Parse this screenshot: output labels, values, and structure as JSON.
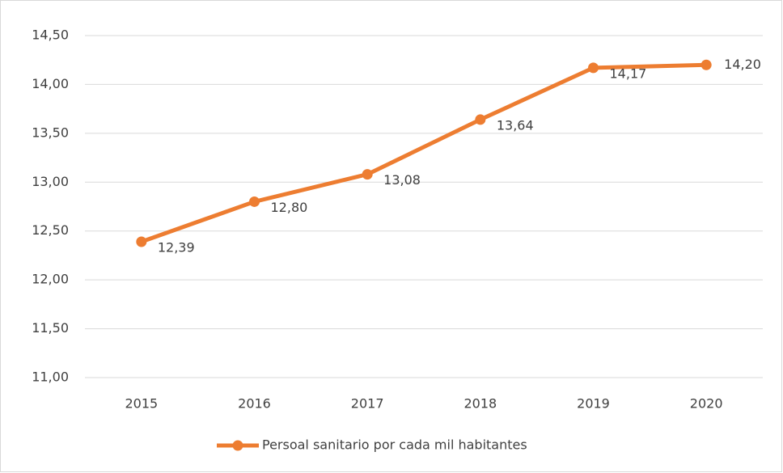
{
  "chart_data": {
    "type": "line",
    "categories": [
      "2015",
      "2016",
      "2017",
      "2018",
      "2019",
      "2020"
    ],
    "series": [
      {
        "name": "Persoal sanitario por cada mil habitantes",
        "color": "#ed7d31",
        "values": [
          12.39,
          12.8,
          13.08,
          13.64,
          14.17,
          14.2
        ],
        "value_labels": [
          "12,39",
          "12,80",
          "13,08",
          "13,64",
          "14,17",
          "14,20"
        ]
      }
    ],
    "ylim": [
      11,
      14.5
    ],
    "yticks": [
      {
        "value": 11,
        "label": "11,00"
      },
      {
        "value": 11.5,
        "label": "11,50"
      },
      {
        "value": 12,
        "label": "12,00"
      },
      {
        "value": 12.5,
        "label": "12,50"
      },
      {
        "value": 13,
        "label": "13,00"
      },
      {
        "value": 13.5,
        "label": "13,50"
      },
      {
        "value": 14,
        "label": "14,00"
      },
      {
        "value": 14.5,
        "label": "14,50"
      }
    ],
    "grid": true,
    "legend": "bottom"
  }
}
